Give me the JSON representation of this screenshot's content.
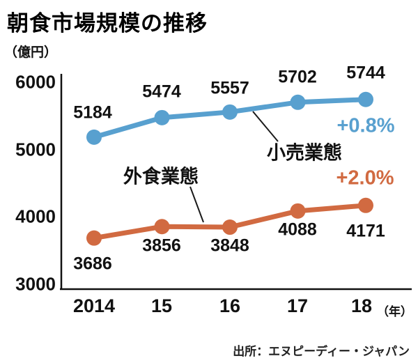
{
  "title": "朝食市場規模の推移",
  "y_axis_unit": "（億円）",
  "x_axis_suffix": "（年）",
  "source": "出所：エヌピーディー・ジャパン",
  "chart_data": {
    "type": "line",
    "title": "朝食市場規模の推移",
    "ylabel": "億円",
    "xlabel": "年",
    "x": [
      "2014",
      "15",
      "16",
      "17",
      "18"
    ],
    "ylim": [
      3000,
      6000
    ],
    "yticks": [
      6000,
      5000,
      4000,
      3000
    ],
    "grid": false,
    "legend_position": "inline-annotations",
    "series": [
      {
        "name": "小売業態",
        "values": [
          5184,
          5474,
          5557,
          5702,
          5744
        ],
        "change": "+0.8%",
        "color": "#58a0cf"
      },
      {
        "name": "外食業態",
        "values": [
          3686,
          3856,
          3848,
          4088,
          4171
        ],
        "change": "+2.0%",
        "color": "#d16a41"
      }
    ]
  }
}
